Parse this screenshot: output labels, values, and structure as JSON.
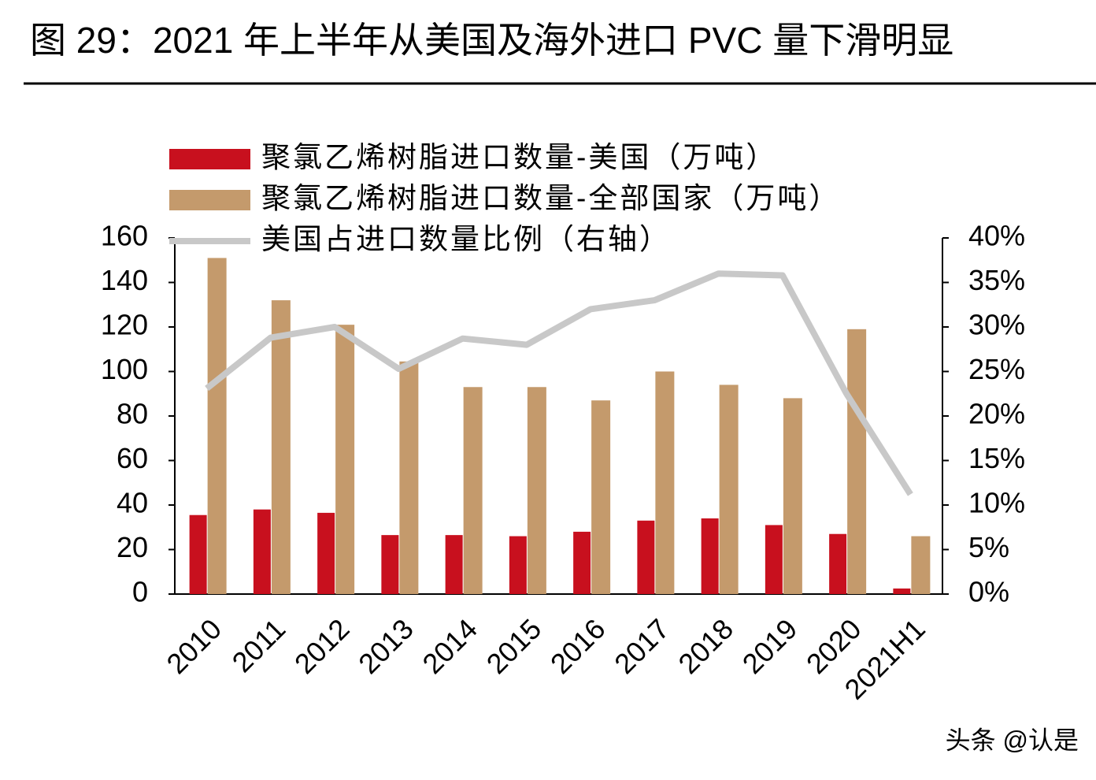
{
  "chart_data": {
    "type": "bar-line",
    "title": "图 29：2021 年上半年从美国及海外进口 PVC 量下滑明显",
    "categories": [
      "2010",
      "2011",
      "2012",
      "2013",
      "2014",
      "2015",
      "2016",
      "2017",
      "2018",
      "2019",
      "2020",
      "2021H1"
    ],
    "series": [
      {
        "name": "聚氯乙烯树脂进口数量-美国（万吨）",
        "color": "#c8101e",
        "type": "bar",
        "values": [
          35.5,
          38,
          36.5,
          26.5,
          26.5,
          26,
          28,
          33,
          34,
          31,
          27,
          2.5
        ]
      },
      {
        "name": "聚氯乙烯树脂进口数量-全部国家（万吨）",
        "color": "#c49a6c",
        "type": "bar",
        "values": [
          151,
          132,
          121,
          104.5,
          93,
          93,
          87,
          100,
          94,
          88,
          119,
          26
        ]
      },
      {
        "name": "美国占进口数量比例（右轴）",
        "color": "#c8c8c8",
        "type": "line",
        "axis": "y2",
        "values": [
          23.1,
          28.8,
          30,
          25.3,
          28.7,
          28,
          32,
          33,
          36,
          35.8,
          22.5,
          11.2
        ]
      }
    ],
    "ylim": [
      0,
      160
    ],
    "yticks": [
      0,
      20,
      40,
      60,
      80,
      100,
      120,
      140,
      160
    ],
    "y2lim": [
      0,
      40
    ],
    "y2ticks": [
      {
        "value": 0,
        "label": "0%"
      },
      {
        "value": 5,
        "label": "5%"
      },
      {
        "value": 10,
        "label": "10%"
      },
      {
        "value": 15,
        "label": "15%"
      },
      {
        "value": 20,
        "label": "20%"
      },
      {
        "value": 25,
        "label": "25%"
      },
      {
        "value": 30,
        "label": "30%"
      },
      {
        "value": 35,
        "label": "35%"
      },
      {
        "value": 40,
        "label": "40%"
      }
    ],
    "legend": "top-left",
    "watermark": "头条 @认是"
  }
}
